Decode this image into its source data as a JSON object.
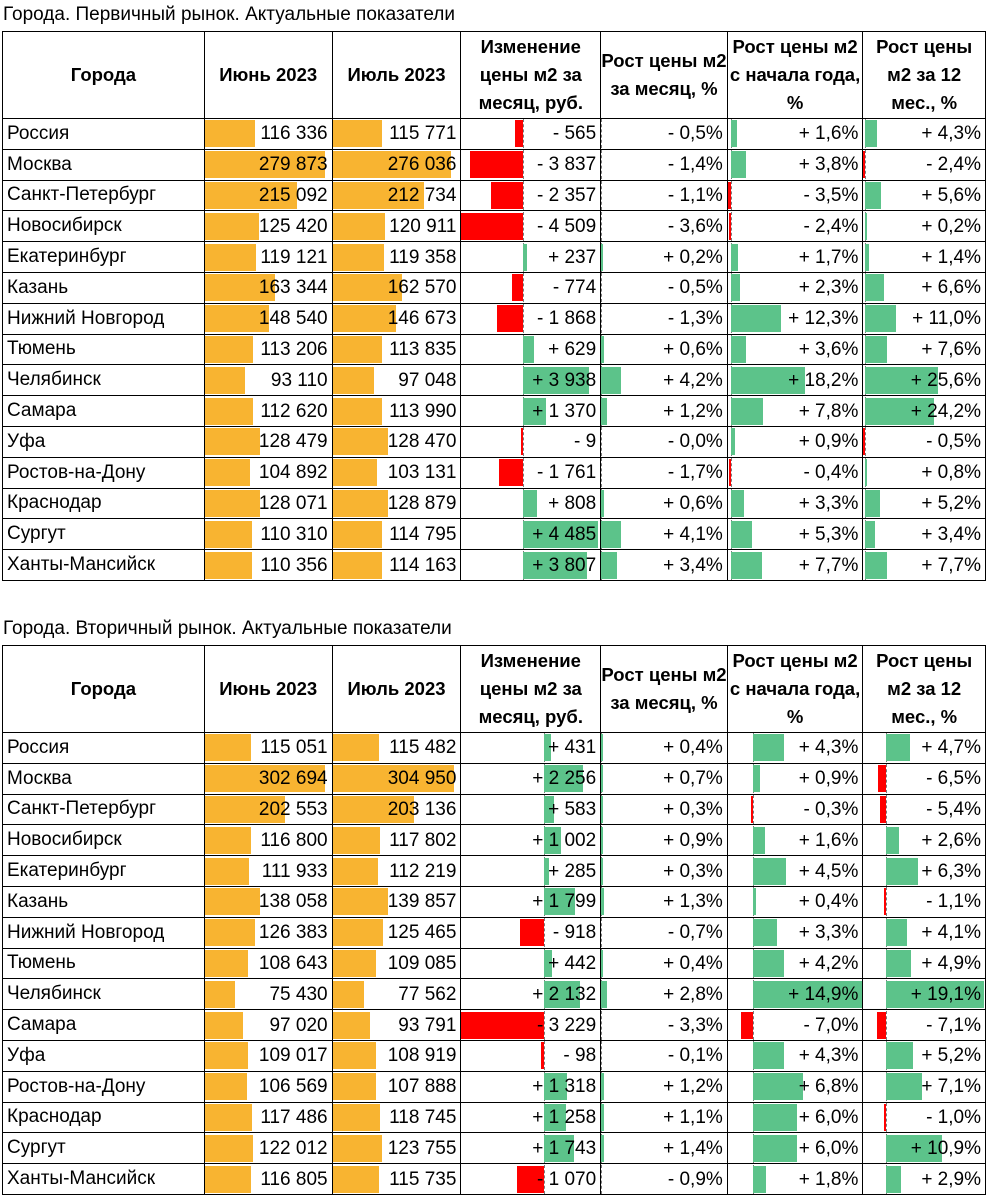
{
  "headers": {
    "city": "Города",
    "june": "Июнь 2023",
    "july": "Июль 2023",
    "change_rub": "Изменение цены м2 за месяц, руб.",
    "growth_month": "Рост цены м2 за месяц, %",
    "growth_ytd": "Рост цены м2 с начала года, %",
    "growth_12m": "Рост цены м2 за 12 мес., %"
  },
  "colors": {
    "price_bar": "#f8b431",
    "positive_bar": "#5cc38a",
    "negative_bar": "#ff0000"
  },
  "primary": {
    "title": "Города. Первичный рынок. Актуальные показатели",
    "rows": [
      {
        "city": "Россия",
        "june": 116336,
        "july": 115771,
        "change": -565,
        "m": -0.5,
        "ytd": 1.6,
        "y": 4.3,
        "june_text": "116 336",
        "july_text": "115 771",
        "change_text": "- 565",
        "m_text": "- 0,5%",
        "ytd_text": "+ 1,6%",
        "y_text": "+ 4,3%"
      },
      {
        "city": "Москва",
        "june": 279873,
        "july": 276036,
        "change": -3837,
        "m": -1.4,
        "ytd": 3.8,
        "y": -2.4,
        "june_text": "279 873",
        "july_text": "276 036",
        "change_text": "- 3 837",
        "m_text": "- 1,4%",
        "ytd_text": "+ 3,8%",
        "y_text": "- 2,4%"
      },
      {
        "city": "Санкт-Петербург",
        "june": 215092,
        "july": 212734,
        "change": -2357,
        "m": -1.1,
        "ytd": -3.5,
        "y": 5.6,
        "june_text": "215 092",
        "july_text": "212 734",
        "change_text": "- 2 357",
        "m_text": "- 1,1%",
        "ytd_text": "- 3,5%",
        "y_text": "+ 5,6%"
      },
      {
        "city": "Новосибирск",
        "june": 125420,
        "july": 120911,
        "change": -4509,
        "m": -3.6,
        "ytd": -2.4,
        "y": 0.2,
        "june_text": "125 420",
        "july_text": "120 911",
        "change_text": "- 4 509",
        "m_text": "- 3,6%",
        "ytd_text": "- 2,4%",
        "y_text": "+ 0,2%"
      },
      {
        "city": "Екатеринбург",
        "june": 119121,
        "july": 119358,
        "change": 237,
        "m": 0.2,
        "ytd": 1.7,
        "y": 1.4,
        "june_text": "119 121",
        "july_text": "119 358",
        "change_text": "+ 237",
        "m_text": "+ 0,2%",
        "ytd_text": "+ 1,7%",
        "y_text": "+ 1,4%"
      },
      {
        "city": "Казань",
        "june": 163344,
        "july": 162570,
        "change": -774,
        "m": -0.5,
        "ytd": 2.3,
        "y": 6.6,
        "june_text": "163 344",
        "july_text": "162 570",
        "change_text": "- 774",
        "m_text": "- 0,5%",
        "ytd_text": "+ 2,3%",
        "y_text": "+ 6,6%"
      },
      {
        "city": "Нижний Новгород",
        "june": 148540,
        "july": 146673,
        "change": -1868,
        "m": -1.3,
        "ytd": 12.3,
        "y": 11.0,
        "june_text": "148 540",
        "july_text": "146 673",
        "change_text": "- 1 868",
        "m_text": "- 1,3%",
        "ytd_text": "+ 12,3%",
        "y_text": "+ 11,0%"
      },
      {
        "city": "Тюмень",
        "june": 113206,
        "july": 113835,
        "change": 629,
        "m": 0.6,
        "ytd": 3.6,
        "y": 7.6,
        "june_text": "113 206",
        "july_text": "113 835",
        "change_text": "+ 629",
        "m_text": "+ 0,6%",
        "ytd_text": "+ 3,6%",
        "y_text": "+ 7,6%"
      },
      {
        "city": "Челябинск",
        "june": 93110,
        "july": 97048,
        "change": 3938,
        "m": 4.2,
        "ytd": 18.2,
        "y": 25.6,
        "june_text": "93 110",
        "july_text": "97 048",
        "change_text": "+ 3 938",
        "m_text": "+ 4,2%",
        "ytd_text": "+ 18,2%",
        "y_text": "+ 25,6%"
      },
      {
        "city": "Самара",
        "june": 112620,
        "july": 113990,
        "change": 1370,
        "m": 1.2,
        "ytd": 7.8,
        "y": 24.2,
        "june_text": "112 620",
        "july_text": "113 990",
        "change_text": "+ 1 370",
        "m_text": "+ 1,2%",
        "ytd_text": "+ 7,8%",
        "y_text": "+ 24,2%"
      },
      {
        "city": "Уфа",
        "june": 128479,
        "july": 128470,
        "change": -9,
        "m": -0.0,
        "ytd": 0.9,
        "y": -0.5,
        "june_text": "128 479",
        "july_text": "128 470",
        "change_text": "- 9",
        "m_text": "- 0,0%",
        "ytd_text": "+ 0,9%",
        "y_text": "- 0,5%"
      },
      {
        "city": "Ростов-на-Дону",
        "june": 104892,
        "july": 103131,
        "change": -1761,
        "m": -1.7,
        "ytd": -0.4,
        "y": 0.8,
        "june_text": "104 892",
        "july_text": "103 131",
        "change_text": "- 1 761",
        "m_text": "- 1,7%",
        "ytd_text": "- 0,4%",
        "y_text": "+ 0,8%"
      },
      {
        "city": "Краснодар",
        "june": 128071,
        "july": 128879,
        "change": 808,
        "m": 0.6,
        "ytd": 3.3,
        "y": 5.2,
        "june_text": "128 071",
        "july_text": "128 879",
        "change_text": "+ 808",
        "m_text": "+ 0,6%",
        "ytd_text": "+ 3,3%",
        "y_text": "+ 5,2%"
      },
      {
        "city": "Сургут",
        "june": 110310,
        "july": 114795,
        "change": 4485,
        "m": 4.1,
        "ytd": 5.3,
        "y": 3.4,
        "june_text": "110 310",
        "july_text": "114 795",
        "change_text": "+ 4 485",
        "m_text": "+ 4,1%",
        "ytd_text": "+ 5,3%",
        "y_text": "+ 3,4%"
      },
      {
        "city": "Ханты-Мансийск",
        "june": 110356,
        "july": 114163,
        "change": 3807,
        "m": 3.4,
        "ytd": 7.7,
        "y": 7.7,
        "june_text": "110 356",
        "july_text": "114 163",
        "change_text": "+ 3 807",
        "m_text": "+ 3,4%",
        "ytd_text": "+ 7,7%",
        "y_text": "+ 7,7%"
      }
    ]
  },
  "secondary": {
    "title": "Города. Вторичный рынок. Актуальные показатели",
    "rows": [
      {
        "city": "Россия",
        "june": 115051,
        "july": 115482,
        "change": 431,
        "m": 0.4,
        "ytd": 4.3,
        "y": 4.7,
        "june_text": "115 051",
        "july_text": "115 482",
        "change_text": "+ 431",
        "m_text": "+ 0,4%",
        "ytd_text": "+ 4,3%",
        "y_text": "+ 4,7%"
      },
      {
        "city": "Москва",
        "june": 302694,
        "july": 304950,
        "change": 2256,
        "m": 0.7,
        "ytd": 0.9,
        "y": -6.5,
        "june_text": "302 694",
        "july_text": "304 950",
        "change_text": "+ 2 256",
        "m_text": "+ 0,7%",
        "ytd_text": "+ 0,9%",
        "y_text": "- 6,5%"
      },
      {
        "city": "Санкт-Петербург",
        "june": 202553,
        "july": 203136,
        "change": 583,
        "m": 0.3,
        "ytd": -0.3,
        "y": -5.4,
        "june_text": "202 553",
        "july_text": "203 136",
        "change_text": "+ 583",
        "m_text": "+ 0,3%",
        "ytd_text": "- 0,3%",
        "y_text": "- 5,4%"
      },
      {
        "city": "Новосибирск",
        "june": 116800,
        "july": 117802,
        "change": 1002,
        "m": 0.9,
        "ytd": 1.6,
        "y": 2.6,
        "june_text": "116 800",
        "july_text": "117 802",
        "change_text": "+ 1 002",
        "m_text": "+ 0,9%",
        "ytd_text": "+ 1,6%",
        "y_text": "+ 2,6%"
      },
      {
        "city": "Екатеринбург",
        "june": 111933,
        "july": 112219,
        "change": 285,
        "m": 0.3,
        "ytd": 4.5,
        "y": 6.3,
        "june_text": "111 933",
        "july_text": "112 219",
        "change_text": "+ 285",
        "m_text": "+ 0,3%",
        "ytd_text": "+ 4,5%",
        "y_text": "+ 6,3%"
      },
      {
        "city": "Казань",
        "june": 138058,
        "july": 139857,
        "change": 1799,
        "m": 1.3,
        "ytd": 0.4,
        "y": -1.1,
        "june_text": "138 058",
        "july_text": "139 857",
        "change_text": "+ 1 799",
        "m_text": "+ 1,3%",
        "ytd_text": "+ 0,4%",
        "y_text": "- 1,1%"
      },
      {
        "city": "Нижний Новгород",
        "june": 126383,
        "july": 125465,
        "change": -918,
        "m": -0.7,
        "ytd": 3.3,
        "y": 4.1,
        "june_text": "126 383",
        "july_text": "125 465",
        "change_text": "- 918",
        "m_text": "- 0,7%",
        "ytd_text": "+ 3,3%",
        "y_text": "+ 4,1%"
      },
      {
        "city": "Тюмень",
        "june": 108643,
        "july": 109085,
        "change": 442,
        "m": 0.4,
        "ytd": 4.2,
        "y": 4.9,
        "june_text": "108 643",
        "july_text": "109 085",
        "change_text": "+ 442",
        "m_text": "+ 0,4%",
        "ytd_text": "+ 4,2%",
        "y_text": "+ 4,9%"
      },
      {
        "city": "Челябинск",
        "june": 75430,
        "july": 77562,
        "change": 2132,
        "m": 2.8,
        "ytd": 14.9,
        "y": 19.1,
        "june_text": "75 430",
        "july_text": "77 562",
        "change_text": "+ 2 132",
        "m_text": "+ 2,8%",
        "ytd_text": "+ 14,9%",
        "y_text": "+ 19,1%"
      },
      {
        "city": "Самара",
        "june": 97020,
        "july": 93791,
        "change": -3229,
        "m": -3.3,
        "ytd": -7.0,
        "y": -7.1,
        "june_text": "97 020",
        "july_text": "93 791",
        "change_text": "- 3 229",
        "m_text": "- 3,3%",
        "ytd_text": "- 7,0%",
        "y_text": "- 7,1%"
      },
      {
        "city": "Уфа",
        "june": 109017,
        "july": 108919,
        "change": -98,
        "m": -0.1,
        "ytd": 4.3,
        "y": 5.2,
        "june_text": "109 017",
        "july_text": "108 919",
        "change_text": "- 98",
        "m_text": "- 0,1%",
        "ytd_text": "+ 4,3%",
        "y_text": "+ 5,2%"
      },
      {
        "city": "Ростов-на-Дону",
        "june": 106569,
        "july": 107888,
        "change": 1318,
        "m": 1.2,
        "ytd": 6.8,
        "y": 7.1,
        "june_text": "106 569",
        "july_text": "107 888",
        "change_text": "+ 1 318",
        "m_text": "+ 1,2%",
        "ytd_text": "+ 6,8%",
        "y_text": "+ 7,1%"
      },
      {
        "city": "Краснодар",
        "june": 117486,
        "july": 118745,
        "change": 1258,
        "m": 1.1,
        "ytd": 6.0,
        "y": -1.0,
        "june_text": "117 486",
        "july_text": "118 745",
        "change_text": "+ 1 258",
        "m_text": "+ 1,1%",
        "ytd_text": "+ 6,0%",
        "y_text": "- 1,0%"
      },
      {
        "city": "Сургут",
        "june": 122012,
        "july": 123755,
        "change": 1743,
        "m": 1.4,
        "ytd": 6.0,
        "y": 10.9,
        "june_text": "122 012",
        "july_text": "123 755",
        "change_text": "+ 1 743",
        "m_text": "+ 1,4%",
        "ytd_text": "+ 6,0%",
        "y_text": "+ 10,9%"
      },
      {
        "city": "Ханты-Мансийск",
        "june": 116805,
        "july": 115735,
        "change": -1070,
        "m": -0.9,
        "ytd": 1.8,
        "y": 2.9,
        "june_text": "116 805",
        "july_text": "115 735",
        "change_text": "- 1 070",
        "m_text": "- 0,9%",
        "ytd_text": "+ 1,8%",
        "y_text": "+ 2,9%"
      }
    ]
  }
}
